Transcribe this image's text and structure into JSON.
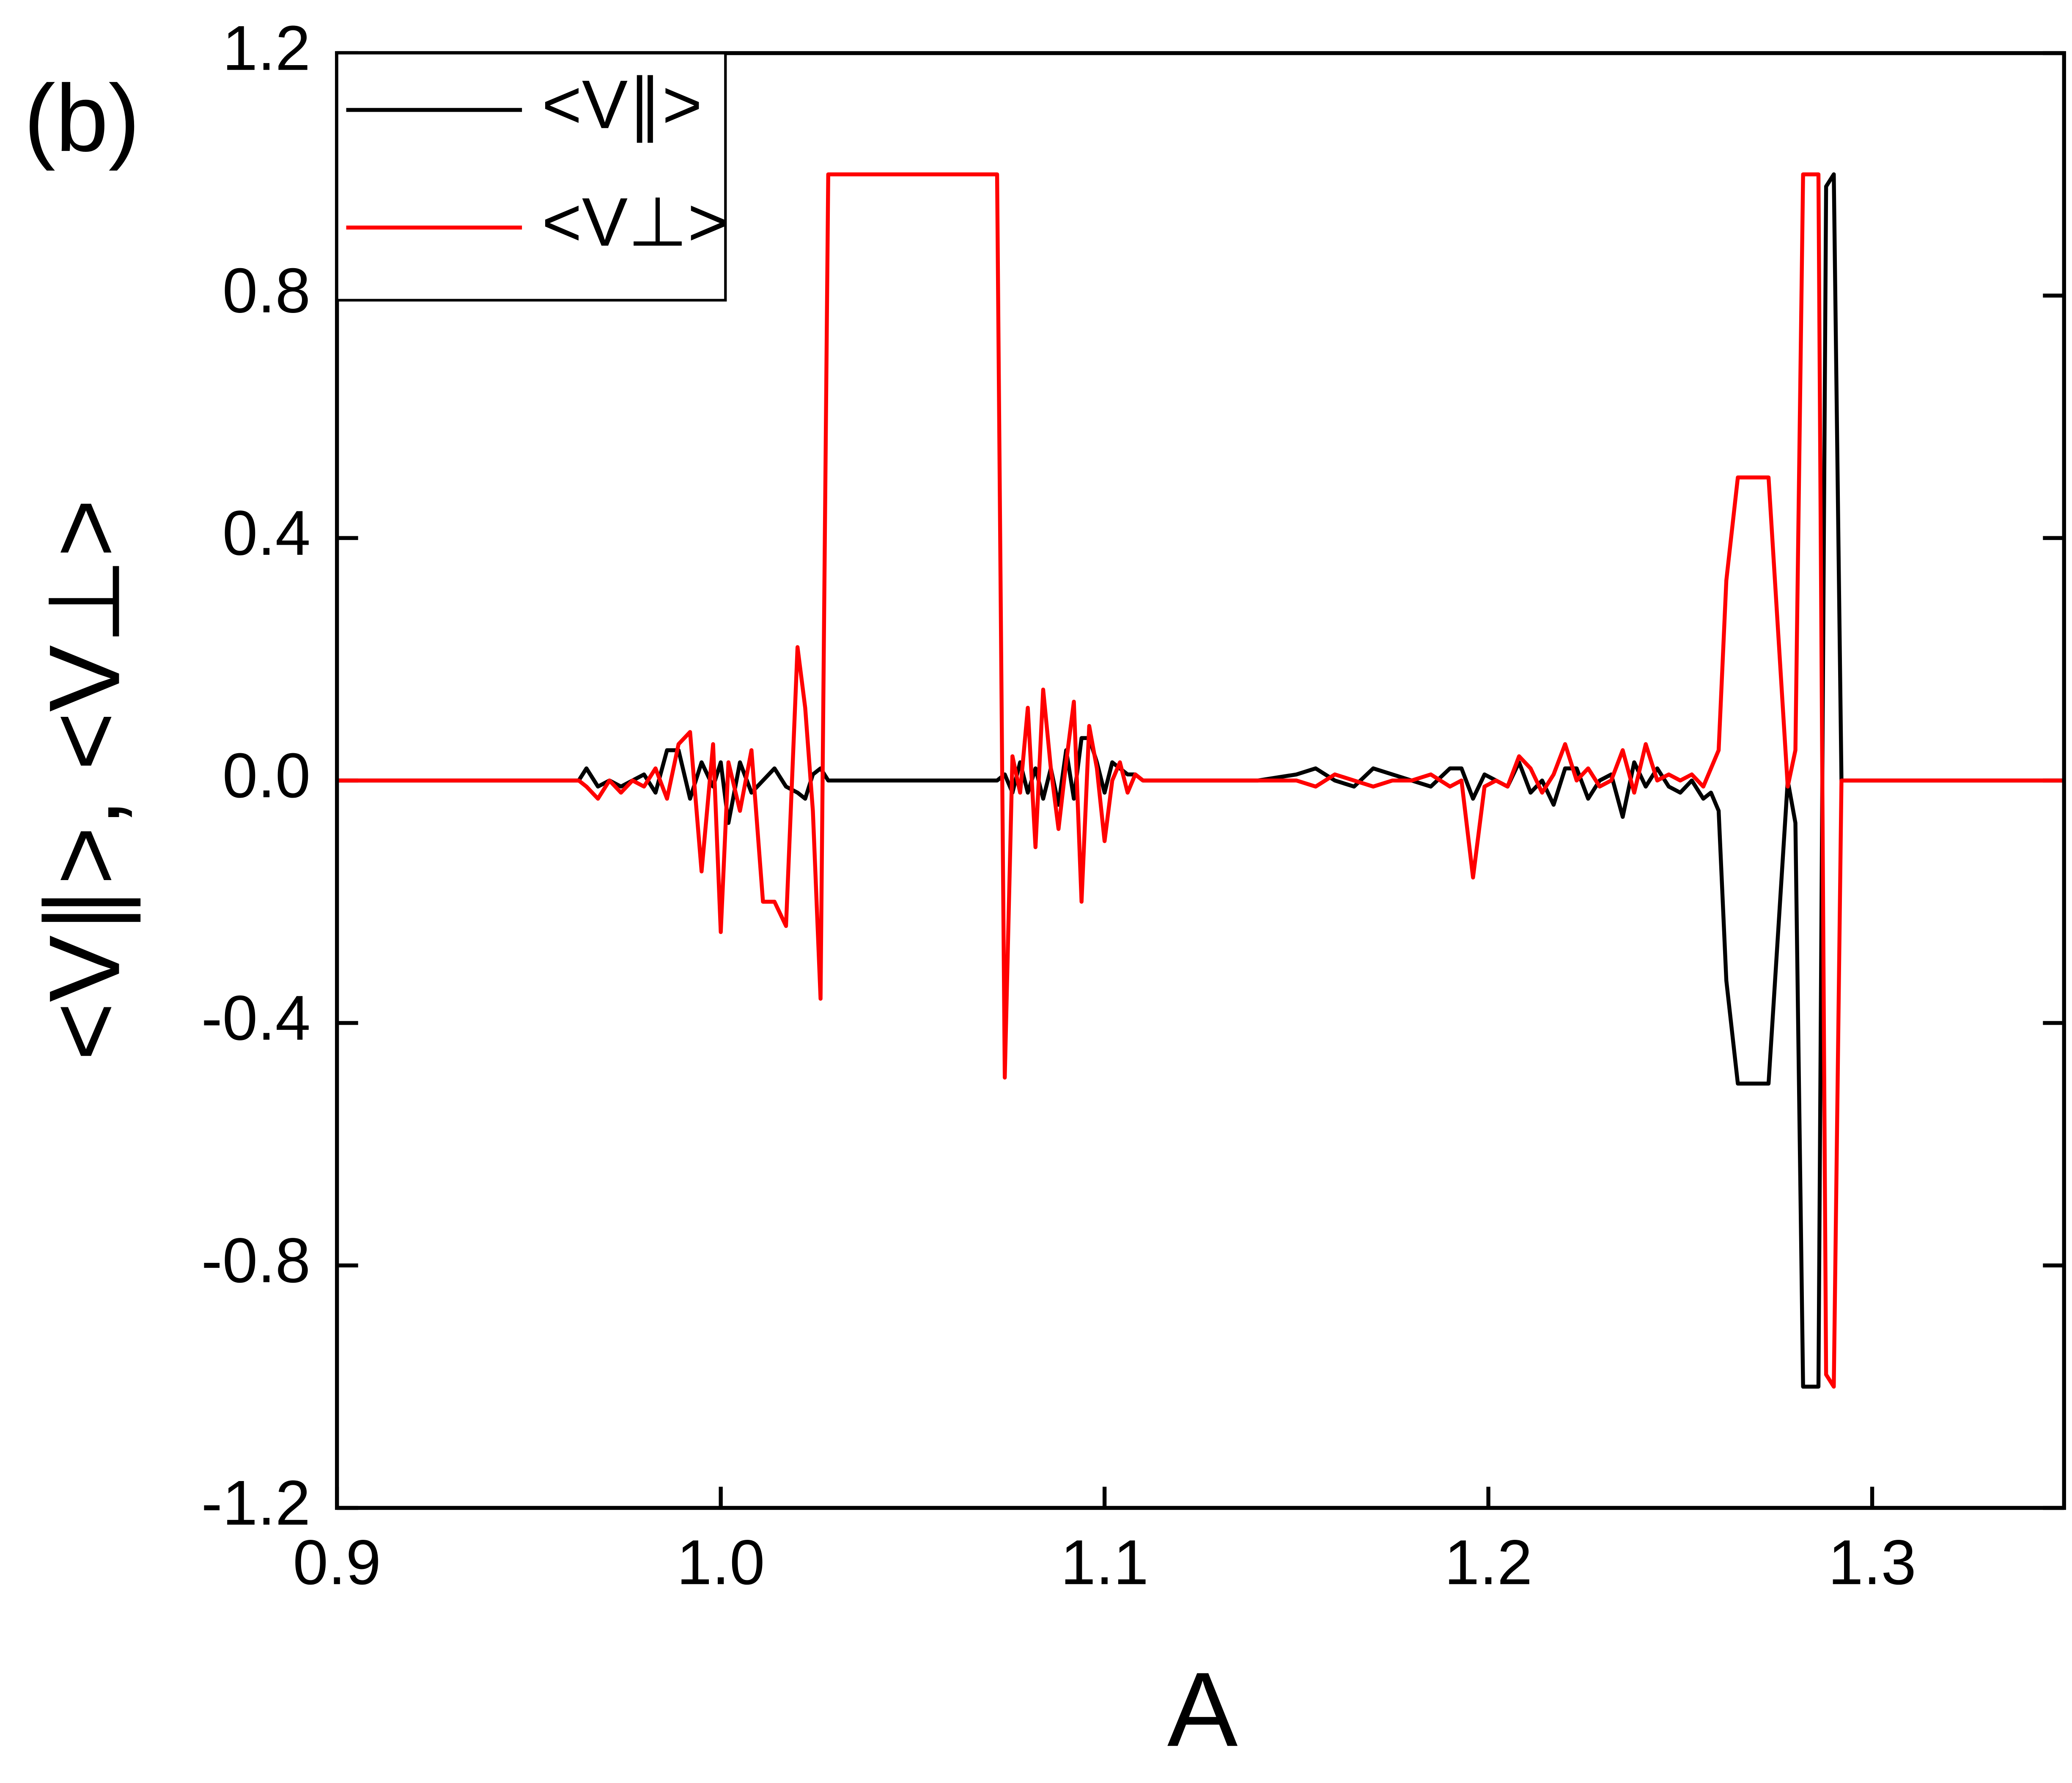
{
  "chart_data": {
    "type": "line",
    "annotation": "(b)",
    "x_label": "A",
    "y_label": "<V∥>, <V⊥>",
    "xlim": [
      0.9,
      1.35
    ],
    "ylim": [
      -1.2,
      1.2
    ],
    "xticks": [
      0.9,
      {
        "value": 1,
        "label": "1.0"
      },
      1.1,
      1.2,
      1.3
    ],
    "yticks": [
      -1.2,
      -0.8,
      -0.4,
      {
        "value": 0,
        "label": "0.0"
      },
      0.4,
      0.8,
      1.2
    ],
    "legend": "upper left",
    "x": [
      0.9,
      0.963,
      0.965,
      0.968,
      0.971,
      0.974,
      0.977,
      0.98,
      0.983,
      0.986,
      0.989,
      0.992,
      0.995,
      0.998,
      1.0,
      1.002,
      1.005,
      1.008,
      1.011,
      1.014,
      1.017,
      1.02,
      1.022,
      1.024,
      1.026,
      1.028,
      1.072,
      1.074,
      1.076,
      1.078,
      1.08,
      1.082,
      1.084,
      1.086,
      1.088,
      1.09,
      1.092,
      1.094,
      1.096,
      1.098,
      1.1,
      1.102,
      1.104,
      1.106,
      1.108,
      1.11,
      1.112,
      1.12,
      1.13,
      1.14,
      1.15,
      1.155,
      1.16,
      1.165,
      1.17,
      1.175,
      1.18,
      1.185,
      1.19,
      1.193,
      1.196,
      1.199,
      1.202,
      1.205,
      1.208,
      1.211,
      1.214,
      1.217,
      1.22,
      1.223,
      1.226,
      1.229,
      1.232,
      1.235,
      1.238,
      1.241,
      1.244,
      1.247,
      1.25,
      1.253,
      1.256,
      1.258,
      1.26,
      1.262,
      1.265,
      1.273,
      1.278,
      1.28,
      1.282,
      1.286,
      1.288,
      1.29,
      1.292,
      1.35
    ],
    "series": [
      {
        "name": "<V∥>",
        "color": "#000000",
        "values": [
          0,
          0,
          0.02,
          -0.01,
          0.0,
          -0.01,
          0.0,
          0.01,
          -0.02,
          0.05,
          0.05,
          -0.03,
          0.03,
          -0.01,
          0.03,
          -0.07,
          0.03,
          -0.02,
          0.0,
          0.02,
          -0.01,
          -0.02,
          -0.03,
          0.01,
          0.02,
          0,
          0,
          0.01,
          -0.02,
          0.03,
          -0.02,
          0.02,
          -0.03,
          0.02,
          -0.04,
          0.05,
          -0.03,
          0.07,
          0.07,
          0.03,
          -0.02,
          0.03,
          0.02,
          0.01,
          0.01,
          0.0,
          0.0,
          0.0,
          0.0,
          0.0,
          0.01,
          0.02,
          0.0,
          -0.01,
          0.02,
          0.01,
          0.0,
          -0.01,
          0.02,
          0.02,
          -0.03,
          0.01,
          0.0,
          -0.01,
          0.03,
          -0.02,
          0.0,
          -0.04,
          0.02,
          0.02,
          -0.03,
          0.0,
          0.01,
          -0.06,
          0.03,
          -0.01,
          0.02,
          -0.01,
          -0.02,
          0.0,
          -0.03,
          -0.02,
          -0.05,
          -0.33,
          -0.5,
          -0.5,
          0.0,
          -0.07,
          -1,
          -1,
          0.98,
          1.0,
          0.0,
          0
        ]
      },
      {
        "name": "<V⊥>",
        "color": "#ff0000",
        "values": [
          0,
          0,
          -0.01,
          -0.03,
          0.0,
          -0.02,
          0.0,
          -0.01,
          0.02,
          -0.03,
          0.06,
          0.08,
          -0.15,
          0.06,
          -0.25,
          0.03,
          -0.05,
          0.05,
          -0.2,
          -0.2,
          -0.24,
          0.22,
          0.12,
          -0.05,
          -0.36,
          1.0,
          1.0,
          -0.49,
          0.04,
          -0.02,
          0.12,
          -0.11,
          0.15,
          0.02,
          -0.08,
          0.03,
          0.13,
          -0.2,
          0.09,
          0.02,
          -0.1,
          0.0,
          0.03,
          -0.02,
          0.01,
          0.0,
          0.0,
          0.0,
          0.0,
          0.0,
          0.0,
          -0.01,
          0.01,
          0.0,
          -0.01,
          0.0,
          0.0,
          0.01,
          -0.01,
          0.0,
          -0.16,
          -0.01,
          0.0,
          -0.01,
          0.04,
          0.02,
          -0.02,
          0.01,
          0.06,
          0.0,
          0.02,
          -0.01,
          0.0,
          0.05,
          -0.02,
          0.06,
          0.0,
          0.01,
          0.0,
          0.01,
          -0.01,
          0.02,
          0.05,
          0.33,
          0.5,
          0.5,
          -0.01,
          0.05,
          1,
          1,
          -0.98,
          -1.0,
          0.0,
          0
        ]
      }
    ]
  }
}
